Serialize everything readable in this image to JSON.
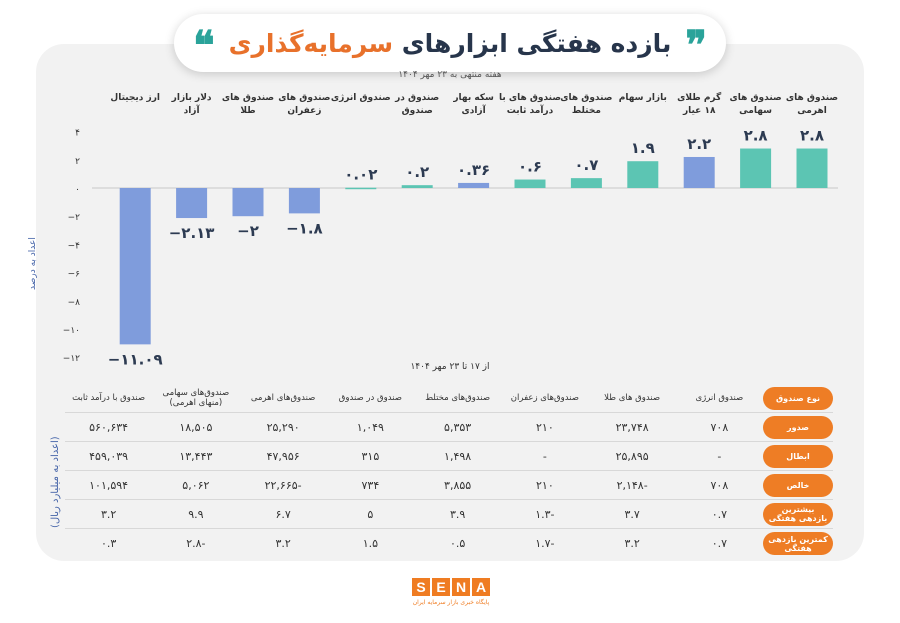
{
  "header": {
    "title_part1": "بازده هفتگی ابزارهای",
    "title_part2": "سرمایه‌گذاری",
    "quote_open": "❞",
    "quote_close": "❝",
    "subtitle": "هفته منتهی به ۲۳ مهر ۱۴۰۴"
  },
  "colors": {
    "teal": "#5cc5b3",
    "blue": "#7f9cdc",
    "orange": "#ee7d25",
    "title": "#27354b"
  },
  "chart_data": {
    "type": "bar",
    "ylabel": "اعداد به درصد",
    "xlabel": "از ۱۷ تا ۲۳ مهر ۱۴۰۴",
    "ylim": [
      -12,
      4
    ],
    "yticks": [
      4,
      2,
      0,
      -2,
      -4,
      -6,
      -8,
      -10,
      -12
    ],
    "ytick_labels": [
      "4",
      "2",
      "0",
      "-2",
      "-4",
      "-6",
      "-8",
      "-10",
      "-12"
    ],
    "grid": false,
    "categories": [
      "صندوق های اهرمی",
      "صندوق های سهامی",
      "گرم طلای ۱۸ عیار",
      "بازار سهام",
      "صندوق های مختلط",
      "صندوق های با درآمد ثابت",
      "سکه بهار آزادی",
      "صندوق در صندوق",
      "صندوق انرژی",
      "صندوق های زعفران",
      "صندوق های طلا",
      "دلار بازار آزاد",
      "ارز دیجیتال"
    ],
    "values": [
      2.8,
      2.8,
      2.2,
      1.9,
      0.7,
      0.6,
      0.36,
      0.2,
      0.02,
      -1.8,
      -2,
      -2.13,
      -11.09
    ],
    "value_labels": [
      "2.8",
      "2.8",
      "2.2",
      "1.9",
      "0.7",
      "0.6",
      "0.36",
      "0.2",
      "0.02",
      "-1.8",
      "-2",
      "-2.13",
      "-11.09"
    ],
    "bar_colors": [
      "#5cc5b3",
      "#5cc5b3",
      "#7f9cdc",
      "#5cc5b3",
      "#5cc5b3",
      "#5cc5b3",
      "#7f9cdc",
      "#5cc5b3",
      "#5cc5b3",
      "#7f9cdc",
      "#7f9cdc",
      "#7f9cdc",
      "#7f9cdc"
    ]
  },
  "table": {
    "unit": "(اعداد به میلیارد ریال)",
    "header_label": "نوع صندوق",
    "columns": [
      "صندوق انرژی",
      "صندوق های طلا",
      "صندوق‌های زعفران",
      "صندوق‌های مختلط",
      "صندوق در صندوق",
      "صندوق‌های اهرمی",
      "صندوق‌های سهامی (منهای اهرمی)",
      "صندوق با درآمد ثابت"
    ],
    "rows": [
      {
        "label": "صدور",
        "values": [
          "۷۰۸",
          "۲۳,۷۴۸",
          "۲۱۰",
          "۵,۳۵۳",
          "۱,۰۴۹",
          "۲۵,۲۹۰",
          "۱۸,۵۰۵",
          "۵۶۰,۶۳۴"
        ]
      },
      {
        "label": "ابطال",
        "values": [
          "-",
          "۲۵,۸۹۵",
          "-",
          "۱,۴۹۸",
          "۳۱۵",
          "۴۷,۹۵۶",
          "۱۳,۴۴۳",
          "۴۵۹,۰۳۹"
        ]
      },
      {
        "label": "خالص",
        "values": [
          "۷۰۸",
          "-۲,۱۴۸",
          "۲۱۰",
          "۳,۸۵۵",
          "۷۳۴",
          "-۲۲,۶۶۵",
          "۵,۰۶۲",
          "۱۰۱,۵۹۴"
        ]
      },
      {
        "label": "بیشترین بازدهی هفتگی",
        "values": [
          "۰.۷",
          "۳.۷",
          "-۱.۳",
          "۳.۹",
          "۵",
          "۶.۷",
          "۹.۹",
          "۳.۲"
        ]
      },
      {
        "label": "کمترین بازدهی هفتگی",
        "values": [
          "۰.۷",
          "۳.۲",
          "-۱.۷",
          "۰.۵",
          "۱.۵",
          "۳.۲",
          "-۲.۸",
          "۰.۳"
        ]
      }
    ]
  },
  "logo": {
    "letters": [
      "S",
      "E",
      "N",
      "A"
    ],
    "tagline": "پایگاه خبری بازار سرمایه ایران"
  }
}
